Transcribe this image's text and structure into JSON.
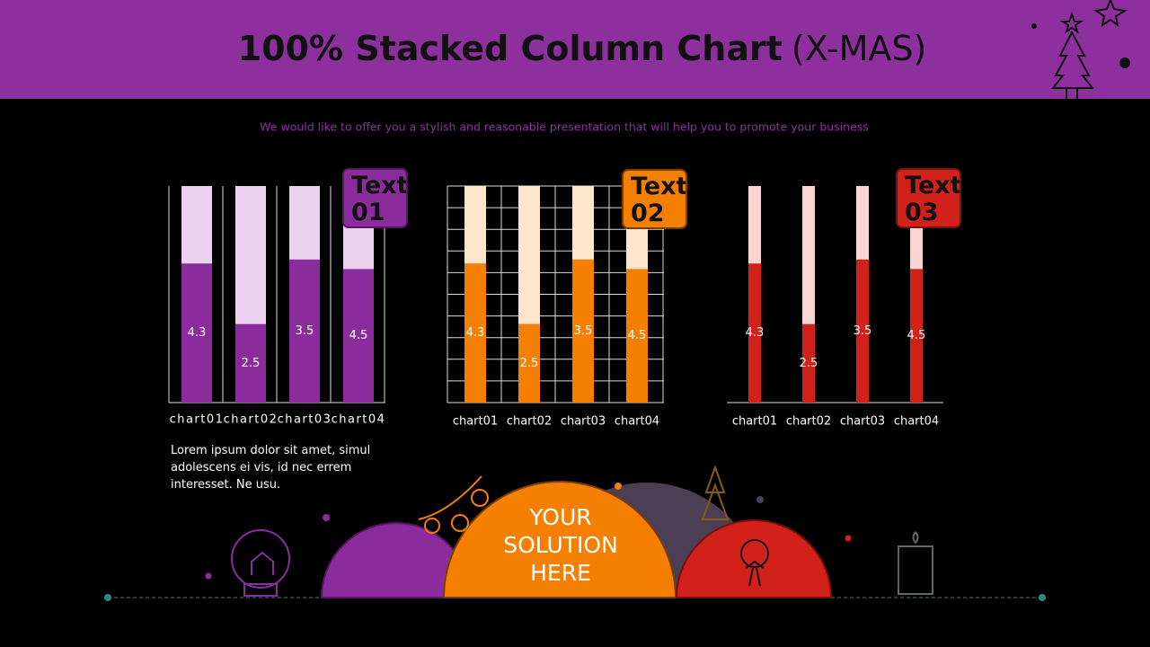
{
  "header": {
    "title": "100% Stacked Column Chart",
    "title_suffix": "(X-MAS)",
    "subtitle": "We would like to offer you a stylish and reasonable presentation that will help you to promote your business"
  },
  "chart_data": [
    {
      "type": "bar",
      "stacked": "percent",
      "grid": "vertical",
      "annotation": "Text 01",
      "categories": [
        "chart01",
        "chart02",
        "chart03",
        "chart04"
      ],
      "series": [
        {
          "color": "#8b2c9c",
          "values": [
            4.3,
            2.5,
            3.5,
            4.5
          ]
        },
        {
          "color": "#ecd0ef",
          "values": [
            2.4,
            4.4,
            1.8,
            2.8
          ]
        }
      ]
    },
    {
      "type": "bar",
      "stacked": "percent",
      "grid": "both",
      "annotation": "Text 02",
      "categories": [
        "chart01",
        "chart02",
        "chart03",
        "chart04"
      ],
      "series": [
        {
          "color": "#f57f00",
          "values": [
            4.3,
            2.5,
            3.5,
            4.5
          ]
        },
        {
          "color": "#fde5cc",
          "values": [
            2.4,
            4.4,
            1.8,
            2.8
          ]
        }
      ]
    },
    {
      "type": "bar",
      "stacked": "percent",
      "grid": "none",
      "annotation": "Text 03",
      "categories": [
        "chart01",
        "chart02",
        "chart03",
        "chart04"
      ],
      "series": [
        {
          "color": "#d2201a",
          "values": [
            4.3,
            2.5,
            3.5,
            4.5
          ]
        },
        {
          "color": "#fcd5d2",
          "values": [
            2.4,
            4.4,
            1.8,
            2.8
          ]
        }
      ]
    }
  ],
  "body": {
    "paragraph": "Lorem ipsum dolor sit amet, simul adolescens ei vis, id nec errem interesset. Ne usu.",
    "solution": "YOUR SOLUTION HERE"
  }
}
